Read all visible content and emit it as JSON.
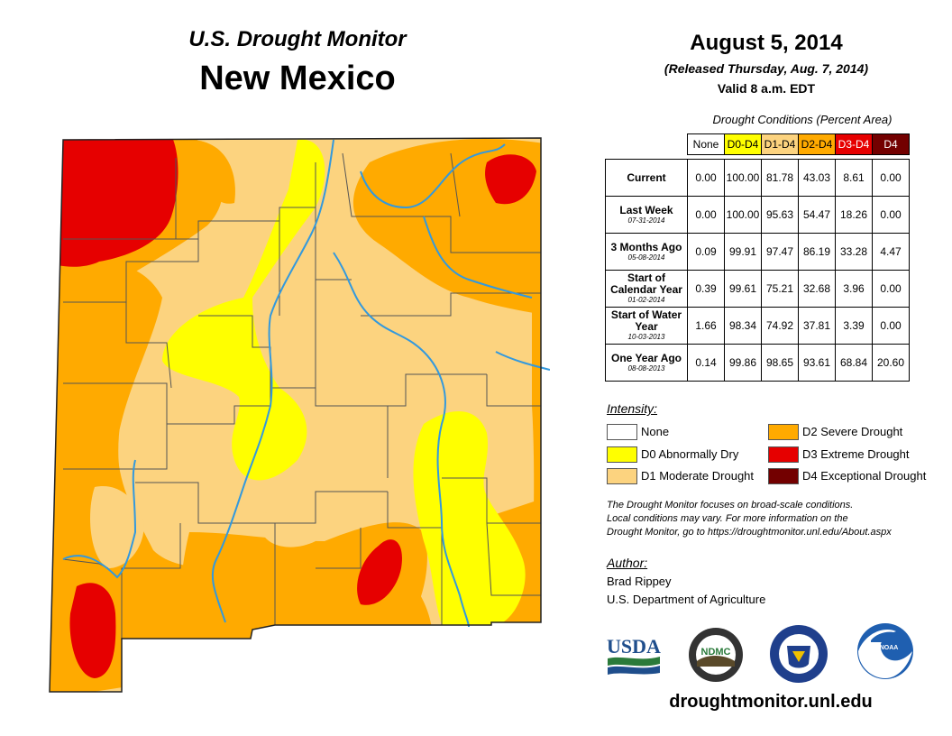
{
  "header": {
    "monitor_title": "U.S. Drought Monitor",
    "state": "New Mexico",
    "date": "August 5, 2014",
    "released": "(Released Thursday, Aug. 7, 2014)",
    "valid": "Valid 8 a.m. EDT"
  },
  "table": {
    "title": "Drought Conditions (Percent Area)",
    "columns": [
      {
        "label": "None",
        "color": "#ffffff"
      },
      {
        "label": "D0-D4",
        "color": "#ffff00"
      },
      {
        "label": "D1-D4",
        "color": "#fcd37f"
      },
      {
        "label": "D2-D4",
        "color": "#ffaa00"
      },
      {
        "label": "D3-D4",
        "color": "#e60000"
      },
      {
        "label": "D4",
        "color": "#730000"
      }
    ],
    "rows": [
      {
        "label": "Current",
        "date": "",
        "values": [
          "0.00",
          "100.00",
          "81.78",
          "43.03",
          "8.61",
          "0.00"
        ]
      },
      {
        "label": "Last Week",
        "date": "07-31-2014",
        "values": [
          "0.00",
          "100.00",
          "95.63",
          "54.47",
          "18.26",
          "0.00"
        ]
      },
      {
        "label": "3 Months Ago",
        "date": "05-08-2014",
        "values": [
          "0.09",
          "99.91",
          "97.47",
          "86.19",
          "33.28",
          "4.47"
        ]
      },
      {
        "label": "Start of Calendar Year",
        "date": "01-02-2014",
        "values": [
          "0.39",
          "99.61",
          "75.21",
          "32.68",
          "3.96",
          "0.00"
        ]
      },
      {
        "label": "Start of Water Year",
        "date": "10-03-2013",
        "values": [
          "1.66",
          "98.34",
          "74.92",
          "37.81",
          "3.39",
          "0.00"
        ]
      },
      {
        "label": "One Year Ago",
        "date": "08-08-2013",
        "values": [
          "0.14",
          "99.86",
          "98.65",
          "93.61",
          "68.84",
          "20.60"
        ]
      }
    ]
  },
  "legend": {
    "title": "Intensity:",
    "items": [
      {
        "label": "None",
        "color": "#ffffff"
      },
      {
        "label": "D0 Abnormally Dry",
        "color": "#ffff00"
      },
      {
        "label": "D1 Moderate Drought",
        "color": "#fcd37f"
      },
      {
        "label": "D2 Severe Drought",
        "color": "#ffaa00"
      },
      {
        "label": "D3 Extreme Drought",
        "color": "#e60000"
      },
      {
        "label": "D4 Exceptional Drought",
        "color": "#730000"
      }
    ]
  },
  "note": {
    "line1": "The Drought Monitor focuses on broad-scale conditions.",
    "line2": "Local conditions may vary. For more information on the",
    "line3": "Drought Monitor, go to https://droughtmonitor.unl.edu/About.aspx"
  },
  "author": {
    "title": "Author:",
    "name": "Brad Rippey",
    "org": "U.S. Department of Agriculture"
  },
  "logos": {
    "usda": "USDA",
    "ndmc": "NDMC",
    "noaa": "NOAA"
  },
  "website": "droughtmonitor.unl.edu",
  "colors": {
    "d0": "#ffff00",
    "d1": "#fcd37f",
    "d2": "#ffaa00",
    "d3": "#e60000",
    "d4": "#730000",
    "river": "#3399dd",
    "county_border": "#555555"
  }
}
